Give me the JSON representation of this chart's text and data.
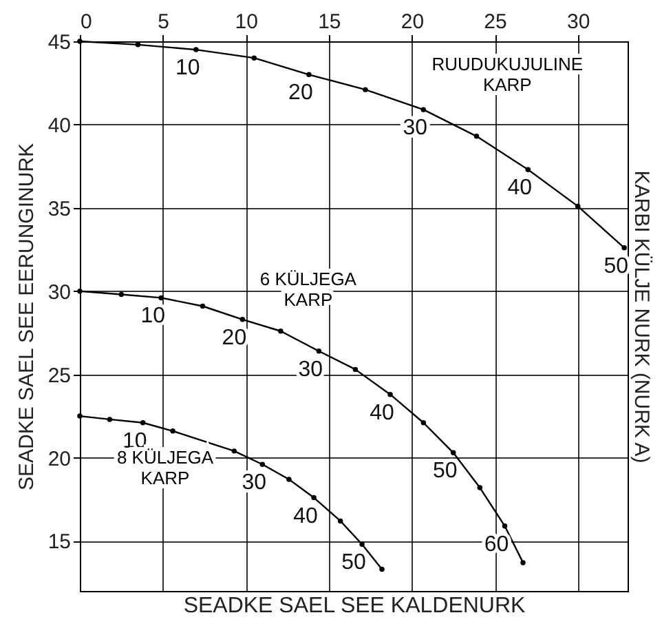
{
  "chart_data": {
    "type": "line",
    "xlabel": "SEADKE SAEL SEE KALDENURK",
    "ylabel": "SEADKE SAEL SEE EERUNGINURK",
    "y2label": "KARBI KÜLJE NURK (NURK A)",
    "xlim": [
      0,
      33
    ],
    "ylim": [
      12,
      45
    ],
    "xticks": [
      0,
      5,
      10,
      15,
      20,
      25,
      30
    ],
    "yticks": [
      15,
      20,
      25,
      30,
      35,
      40,
      45
    ],
    "grid": true,
    "marker": "circle",
    "line_style": "solid",
    "series": [
      {
        "name": "RUUDUKUJULINE KARP",
        "color": "#000000",
        "x": [
          0,
          3.5,
          7.0,
          10.5,
          13.8,
          17.2,
          20.7,
          23.9,
          27.0,
          30.0,
          32.8
        ],
        "values": [
          45,
          44.8,
          44.5,
          44.0,
          43.0,
          42.1,
          40.9,
          39.3,
          37.3,
          35.1,
          32.6
        ]
      },
      {
        "name": "6 KÜLJEGA KARP",
        "color": "#000000",
        "x": [
          0,
          2.5,
          4.9,
          7.4,
          9.8,
          12.1,
          14.4,
          16.6,
          18.7,
          20.7,
          22.5,
          24.1,
          25.6,
          26.7
        ],
        "values": [
          30.0,
          29.8,
          29.6,
          29.1,
          28.3,
          27.6,
          26.4,
          25.3,
          23.8,
          22.1,
          20.3,
          18.2,
          15.9,
          13.7
        ]
      },
      {
        "name": "8 KÜLJEGA KARP",
        "color": "#000000",
        "x": [
          0,
          1.8,
          3.8,
          5.6,
          9.3,
          11.0,
          12.6,
          14.1,
          15.7,
          17.0,
          18.2
        ],
        "values": [
          22.5,
          22.3,
          22.1,
          21.6,
          20.4,
          19.6,
          18.7,
          17.6,
          16.2,
          14.8,
          13.3
        ]
      }
    ],
    "annotations": [
      {
        "text": "10",
        "x": 7.0,
        "y": 44.5
      },
      {
        "text": "20",
        "x": 13.8,
        "y": 43.0
      },
      {
        "text": "30",
        "x": 20.7,
        "y": 40.9
      },
      {
        "text": "40",
        "x": 27.0,
        "y": 37.3
      },
      {
        "text": "50",
        "x": 32.8,
        "y": 32.6
      },
      {
        "text": "10",
        "x": 4.9,
        "y": 29.6
      },
      {
        "text": "20",
        "x": 9.8,
        "y": 28.3
      },
      {
        "text": "30",
        "x": 14.4,
        "y": 26.4
      },
      {
        "text": "40",
        "x": 18.7,
        "y": 23.8
      },
      {
        "text": "50",
        "x": 22.5,
        "y": 20.3
      },
      {
        "text": "60",
        "x": 25.6,
        "y": 15.9
      },
      {
        "text": "10",
        "x": 3.8,
        "y": 22.1
      },
      {
        "text": "30",
        "x": 11.0,
        "y": 19.6
      },
      {
        "text": "40",
        "x": 14.1,
        "y": 17.6
      },
      {
        "text": "50",
        "x": 17.0,
        "y": 14.8
      }
    ]
  }
}
